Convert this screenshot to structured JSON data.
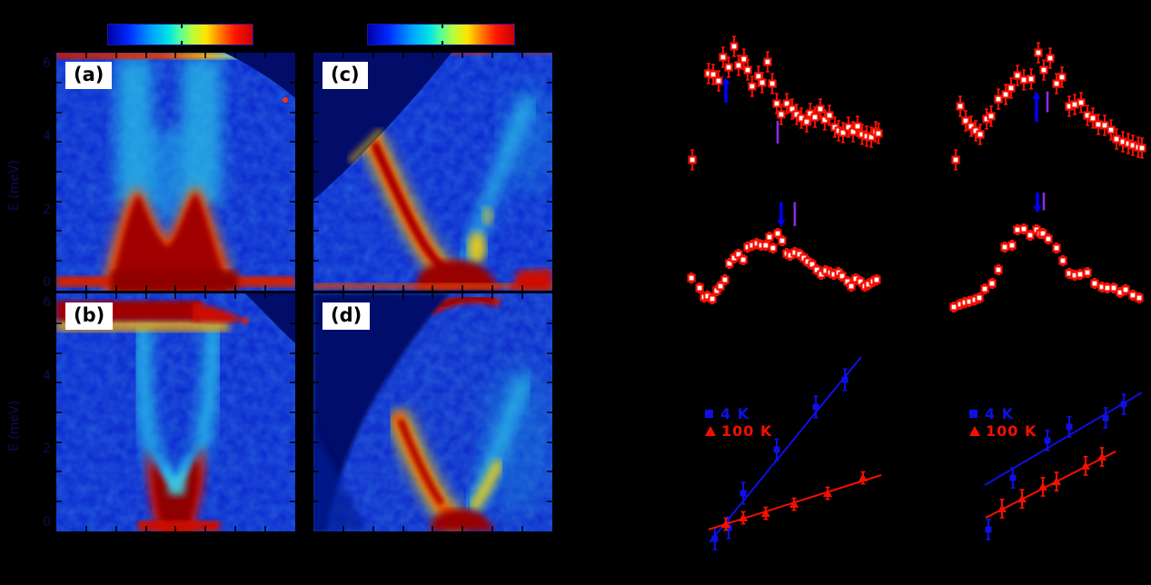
{
  "colors": {
    "background": "#000000",
    "axis_text_navy": "#0d0d55",
    "marker_red": "#f50f00",
    "marker_blue": "#0f0fe6",
    "arrow_blue": "#0000ff",
    "vline_purple": "#8a2be2",
    "panel_label_text": "#000000",
    "panel_label_box": "#ffffff"
  },
  "left_figure": {
    "ylabel": "E (meV)",
    "panels": [
      {
        "id": "a",
        "label": "(a)",
        "yticks": [
          "6",
          "4",
          "2",
          "0"
        ]
      },
      {
        "id": "b",
        "label": "(b)",
        "yticks": [
          "6",
          "4",
          "2",
          "0"
        ]
      },
      {
        "id": "c",
        "label": "(c)"
      },
      {
        "id": "d",
        "label": "(d)"
      }
    ],
    "colorbars": 2
  },
  "legend": {
    "series": [
      {
        "label": "4 K",
        "color": "#0f0fe6",
        "marker": "square"
      },
      {
        "label": "100 K",
        "color": "#f50f00",
        "marker": "triangle"
      }
    ]
  },
  "chart_data": [
    {
      "id": "e",
      "type": "scatter",
      "marker": "open-square",
      "marker_color": "#f50f00",
      "note_axes": "axis labels not visible in image; coordinates are panel fractions (x left-right, y top-down)",
      "err": 0.062,
      "points": [
        [
          0.047,
          0.818
        ],
        [
          0.116,
          0.278
        ],
        [
          0.136,
          0.284
        ],
        [
          0.159,
          0.324
        ],
        [
          0.178,
          0.176
        ],
        [
          0.202,
          0.239
        ],
        [
          0.225,
          0.108
        ],
        [
          0.244,
          0.227
        ],
        [
          0.267,
          0.188
        ],
        [
          0.283,
          0.256
        ],
        [
          0.302,
          0.358
        ],
        [
          0.329,
          0.295
        ],
        [
          0.345,
          0.335
        ],
        [
          0.368,
          0.205
        ],
        [
          0.388,
          0.341
        ],
        [
          0.407,
          0.466
        ],
        [
          0.426,
          0.534
        ],
        [
          0.45,
          0.466
        ],
        [
          0.473,
          0.5
        ],
        [
          0.492,
          0.534
        ],
        [
          0.512,
          0.557
        ],
        [
          0.535,
          0.58
        ],
        [
          0.55,
          0.528
        ],
        [
          0.57,
          0.551
        ],
        [
          0.593,
          0.5
        ],
        [
          0.612,
          0.568
        ],
        [
          0.632,
          0.54
        ],
        [
          0.655,
          0.614
        ],
        [
          0.671,
          0.636
        ],
        [
          0.69,
          0.648
        ],
        [
          0.713,
          0.614
        ],
        [
          0.733,
          0.642
        ],
        [
          0.752,
          0.608
        ],
        [
          0.771,
          0.659
        ],
        [
          0.791,
          0.67
        ],
        [
          0.81,
          0.676
        ],
        [
          0.829,
          0.642
        ],
        [
          0.841,
          0.653
        ]
      ],
      "arrow": {
        "x": 0.19,
        "from": 0.46,
        "to": 0.3,
        "color": "#0000ff"
      },
      "vline": {
        "x": 0.411,
        "y1": 0.574,
        "y2": 0.716,
        "color": "#8a2be2"
      }
    },
    {
      "id": "f",
      "type": "scatter",
      "marker": "open-square",
      "marker_color": "#f50f00",
      "err": 0.062,
      "points": [
        [
          0.148,
          0.818
        ],
        [
          0.168,
          0.483
        ],
        [
          0.192,
          0.574
        ],
        [
          0.216,
          0.608
        ],
        [
          0.236,
          0.636
        ],
        [
          0.256,
          0.659
        ],
        [
          0.284,
          0.562
        ],
        [
          0.304,
          0.545
        ],
        [
          0.336,
          0.438
        ],
        [
          0.368,
          0.409
        ],
        [
          0.392,
          0.369
        ],
        [
          0.42,
          0.29
        ],
        [
          0.448,
          0.318
        ],
        [
          0.48,
          0.312
        ],
        [
          0.512,
          0.148
        ],
        [
          0.536,
          0.256
        ],
        [
          0.564,
          0.182
        ],
        [
          0.592,
          0.341
        ],
        [
          0.616,
          0.301
        ],
        [
          0.648,
          0.483
        ],
        [
          0.672,
          0.472
        ],
        [
          0.7,
          0.46
        ],
        [
          0.728,
          0.54
        ],
        [
          0.752,
          0.557
        ],
        [
          0.776,
          0.597
        ],
        [
          0.804,
          0.602
        ],
        [
          0.832,
          0.631
        ],
        [
          0.856,
          0.688
        ],
        [
          0.884,
          0.705
        ],
        [
          0.908,
          0.716
        ],
        [
          0.928,
          0.727
        ],
        [
          0.952,
          0.739
        ],
        [
          0.968,
          0.744
        ]
      ],
      "arrow": {
        "x": 0.504,
        "from": 0.58,
        "to": 0.39,
        "color": "#0000ff"
      },
      "vline": {
        "x": 0.552,
        "y1": 0.39,
        "y2": 0.52,
        "color": "#8a2be2"
      }
    },
    {
      "id": "g",
      "type": "scatter",
      "marker": "open-square",
      "marker_color": "#f50f00",
      "err": 0.035,
      "points": [
        [
          0.043,
          0.627
        ],
        [
          0.078,
          0.7
        ],
        [
          0.097,
          0.767
        ],
        [
          0.112,
          0.76
        ],
        [
          0.132,
          0.78
        ],
        [
          0.151,
          0.72
        ],
        [
          0.167,
          0.687
        ],
        [
          0.186,
          0.64
        ],
        [
          0.205,
          0.52
        ],
        [
          0.225,
          0.48
        ],
        [
          0.244,
          0.453
        ],
        [
          0.264,
          0.493
        ],
        [
          0.283,
          0.4
        ],
        [
          0.302,
          0.387
        ],
        [
          0.322,
          0.373
        ],
        [
          0.341,
          0.387
        ],
        [
          0.36,
          0.387
        ],
        [
          0.376,
          0.327
        ],
        [
          0.391,
          0.407
        ],
        [
          0.411,
          0.3
        ],
        [
          0.43,
          0.353
        ],
        [
          0.45,
          0.447
        ],
        [
          0.465,
          0.46
        ],
        [
          0.484,
          0.44
        ],
        [
          0.504,
          0.453
        ],
        [
          0.523,
          0.48
        ],
        [
          0.539,
          0.507
        ],
        [
          0.558,
          0.527
        ],
        [
          0.578,
          0.567
        ],
        [
          0.597,
          0.6
        ],
        [
          0.616,
          0.573
        ],
        [
          0.636,
          0.587
        ],
        [
          0.651,
          0.6
        ],
        [
          0.671,
          0.587
        ],
        [
          0.686,
          0.613
        ],
        [
          0.709,
          0.653
        ],
        [
          0.725,
          0.687
        ],
        [
          0.744,
          0.633
        ],
        [
          0.764,
          0.653
        ],
        [
          0.783,
          0.687
        ],
        [
          0.798,
          0.673
        ],
        [
          0.818,
          0.653
        ],
        [
          0.833,
          0.64
        ]
      ],
      "arrow": {
        "x": 0.426,
        "from": 0.07,
        "to": 0.253,
        "color": "#0000ff"
      },
      "vline": {
        "x": 0.484,
        "y1": 0.07,
        "y2": 0.247,
        "color": "#8a2be2"
      }
    },
    {
      "id": "h",
      "type": "scatter",
      "marker": "open-square",
      "marker_color": "#f50f00",
      "err": 0.035,
      "points": [
        [
          0.14,
          0.84
        ],
        [
          0.168,
          0.82
        ],
        [
          0.188,
          0.807
        ],
        [
          0.208,
          0.8
        ],
        [
          0.232,
          0.787
        ],
        [
          0.252,
          0.773
        ],
        [
          0.276,
          0.707
        ],
        [
          0.308,
          0.667
        ],
        [
          0.336,
          0.567
        ],
        [
          0.364,
          0.4
        ],
        [
          0.396,
          0.387
        ],
        [
          0.42,
          0.273
        ],
        [
          0.448,
          0.267
        ],
        [
          0.476,
          0.313
        ],
        [
          0.504,
          0.273
        ],
        [
          0.52,
          0.3
        ],
        [
          0.532,
          0.3
        ],
        [
          0.556,
          0.34
        ],
        [
          0.592,
          0.407
        ],
        [
          0.62,
          0.5
        ],
        [
          0.648,
          0.593
        ],
        [
          0.672,
          0.607
        ],
        [
          0.696,
          0.6
        ],
        [
          0.728,
          0.587
        ],
        [
          0.76,
          0.667
        ],
        [
          0.792,
          0.693
        ],
        [
          0.816,
          0.7
        ],
        [
          0.844,
          0.7
        ],
        [
          0.872,
          0.733
        ],
        [
          0.896,
          0.713
        ],
        [
          0.928,
          0.753
        ],
        [
          0.956,
          0.773
        ]
      ],
      "arrow": {
        "x": 0.508,
        "from": 0.0,
        "to": 0.15,
        "color": "#0000ff"
      },
      "vline": {
        "x": 0.536,
        "y1": 0.0,
        "y2": 0.13,
        "color": "#8a2be2"
      }
    },
    {
      "id": "i",
      "type": "line-scatter",
      "series": [
        {
          "name": "4 K",
          "color": "#0f0fe6",
          "marker": "square",
          "err": 0.05,
          "line": [
            0.12,
            0.881,
            0.767,
            0.013
          ],
          "points": [
            [
              0.143,
              0.864
            ],
            [
              0.202,
              0.813
            ],
            [
              0.264,
              0.651
            ],
            [
              0.407,
              0.447
            ],
            [
              0.574,
              0.247
            ],
            [
              0.698,
              0.119
            ]
          ]
        },
        {
          "name": "100 K",
          "color": "#f50f00",
          "marker": "triangle",
          "err": 0.028,
          "line": [
            0.116,
            0.821,
            0.853,
            0.566
          ],
          "points": [
            [
              0.19,
              0.796
            ],
            [
              0.264,
              0.766
            ],
            [
              0.36,
              0.745
            ],
            [
              0.481,
              0.702
            ],
            [
              0.624,
              0.651
            ],
            [
              0.775,
              0.579
            ]
          ]
        }
      ]
    },
    {
      "id": "j",
      "type": "line-scatter",
      "series": [
        {
          "name": "4 K",
          "color": "#0f0fe6",
          "marker": "square",
          "err": 0.047,
          "line": [
            0.276,
            0.613,
            0.968,
            0.179
          ],
          "points": [
            [
              0.4,
              0.579
            ],
            [
              0.552,
              0.404
            ],
            [
              0.648,
              0.34
            ],
            [
              0.808,
              0.298
            ],
            [
              0.888,
              0.234
            ],
            [
              0.292,
              0.821
            ]
          ]
        },
        {
          "name": "100 K",
          "color": "#f50f00",
          "marker": "triangle",
          "err": 0.043,
          "line": [
            0.28,
            0.766,
            0.852,
            0.455
          ],
          "points": [
            [
              0.352,
              0.723
            ],
            [
              0.44,
              0.677
            ],
            [
              0.532,
              0.621
            ],
            [
              0.592,
              0.596
            ],
            [
              0.72,
              0.523
            ],
            [
              0.792,
              0.481
            ]
          ]
        }
      ]
    }
  ]
}
